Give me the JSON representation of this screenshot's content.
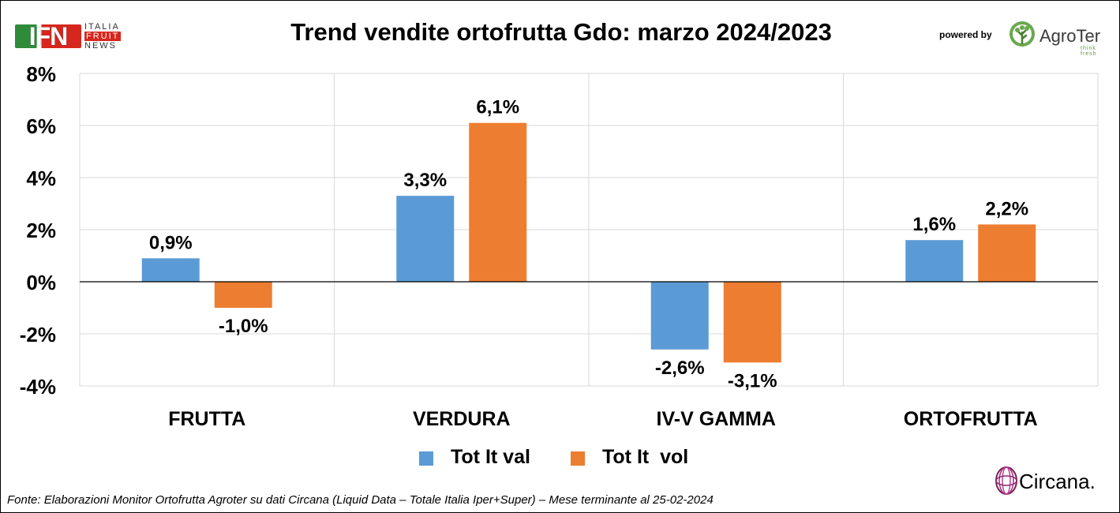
{
  "title": "Trend vendite ortofrutta Gdo: marzo 2024/2023",
  "brand": {
    "ifn_letters": "IFN",
    "ifn_line1": "ITALIA",
    "ifn_line2": "FRUIT",
    "ifn_line3": "NEWS",
    "powered_by": "powered by",
    "agroter_name": "AgroTer",
    "agroter_tagline": "think fresh",
    "circana_name": "Circana."
  },
  "footer": "Fonte: Elaborazioni Monitor Ortofrutta Agroter su dati Circana (Liquid Data – Totale Italia Iper+Super) – Mese terminante al 25-02-2024",
  "colors": {
    "val": "#5b9bd5",
    "vol": "#ed7d31",
    "grid": "#d9d9d9",
    "axis": "#000000"
  },
  "chart_data": {
    "type": "bar",
    "title": "Trend vendite ortofrutta Gdo: marzo 2024/2023",
    "categories": [
      "FRUTTA",
      "VERDURA",
      "IV-V GAMMA",
      "ORTOFRUTTA"
    ],
    "series": [
      {
        "name": "Tot It val",
        "values": [
          0.9,
          3.3,
          -2.6,
          1.6
        ],
        "labels": [
          "0,9%",
          "3,3%",
          "-2,6%",
          "1,6%"
        ]
      },
      {
        "name": "Tot It  vol",
        "values": [
          -1.0,
          6.1,
          -3.1,
          2.2
        ],
        "labels": [
          "-1,0%",
          "6,1%",
          "-3,1%",
          "2,2%"
        ]
      }
    ],
    "ylim": [
      -4,
      8
    ],
    "yticks": [
      8,
      6,
      4,
      2,
      0,
      -2,
      -4
    ],
    "ytick_labels": [
      "8%",
      "6%",
      "4%",
      "2%",
      "0%",
      "-2%",
      "-4%"
    ],
    "xlabel": "",
    "ylabel": "",
    "grid": true,
    "legend_position": "bottom"
  }
}
